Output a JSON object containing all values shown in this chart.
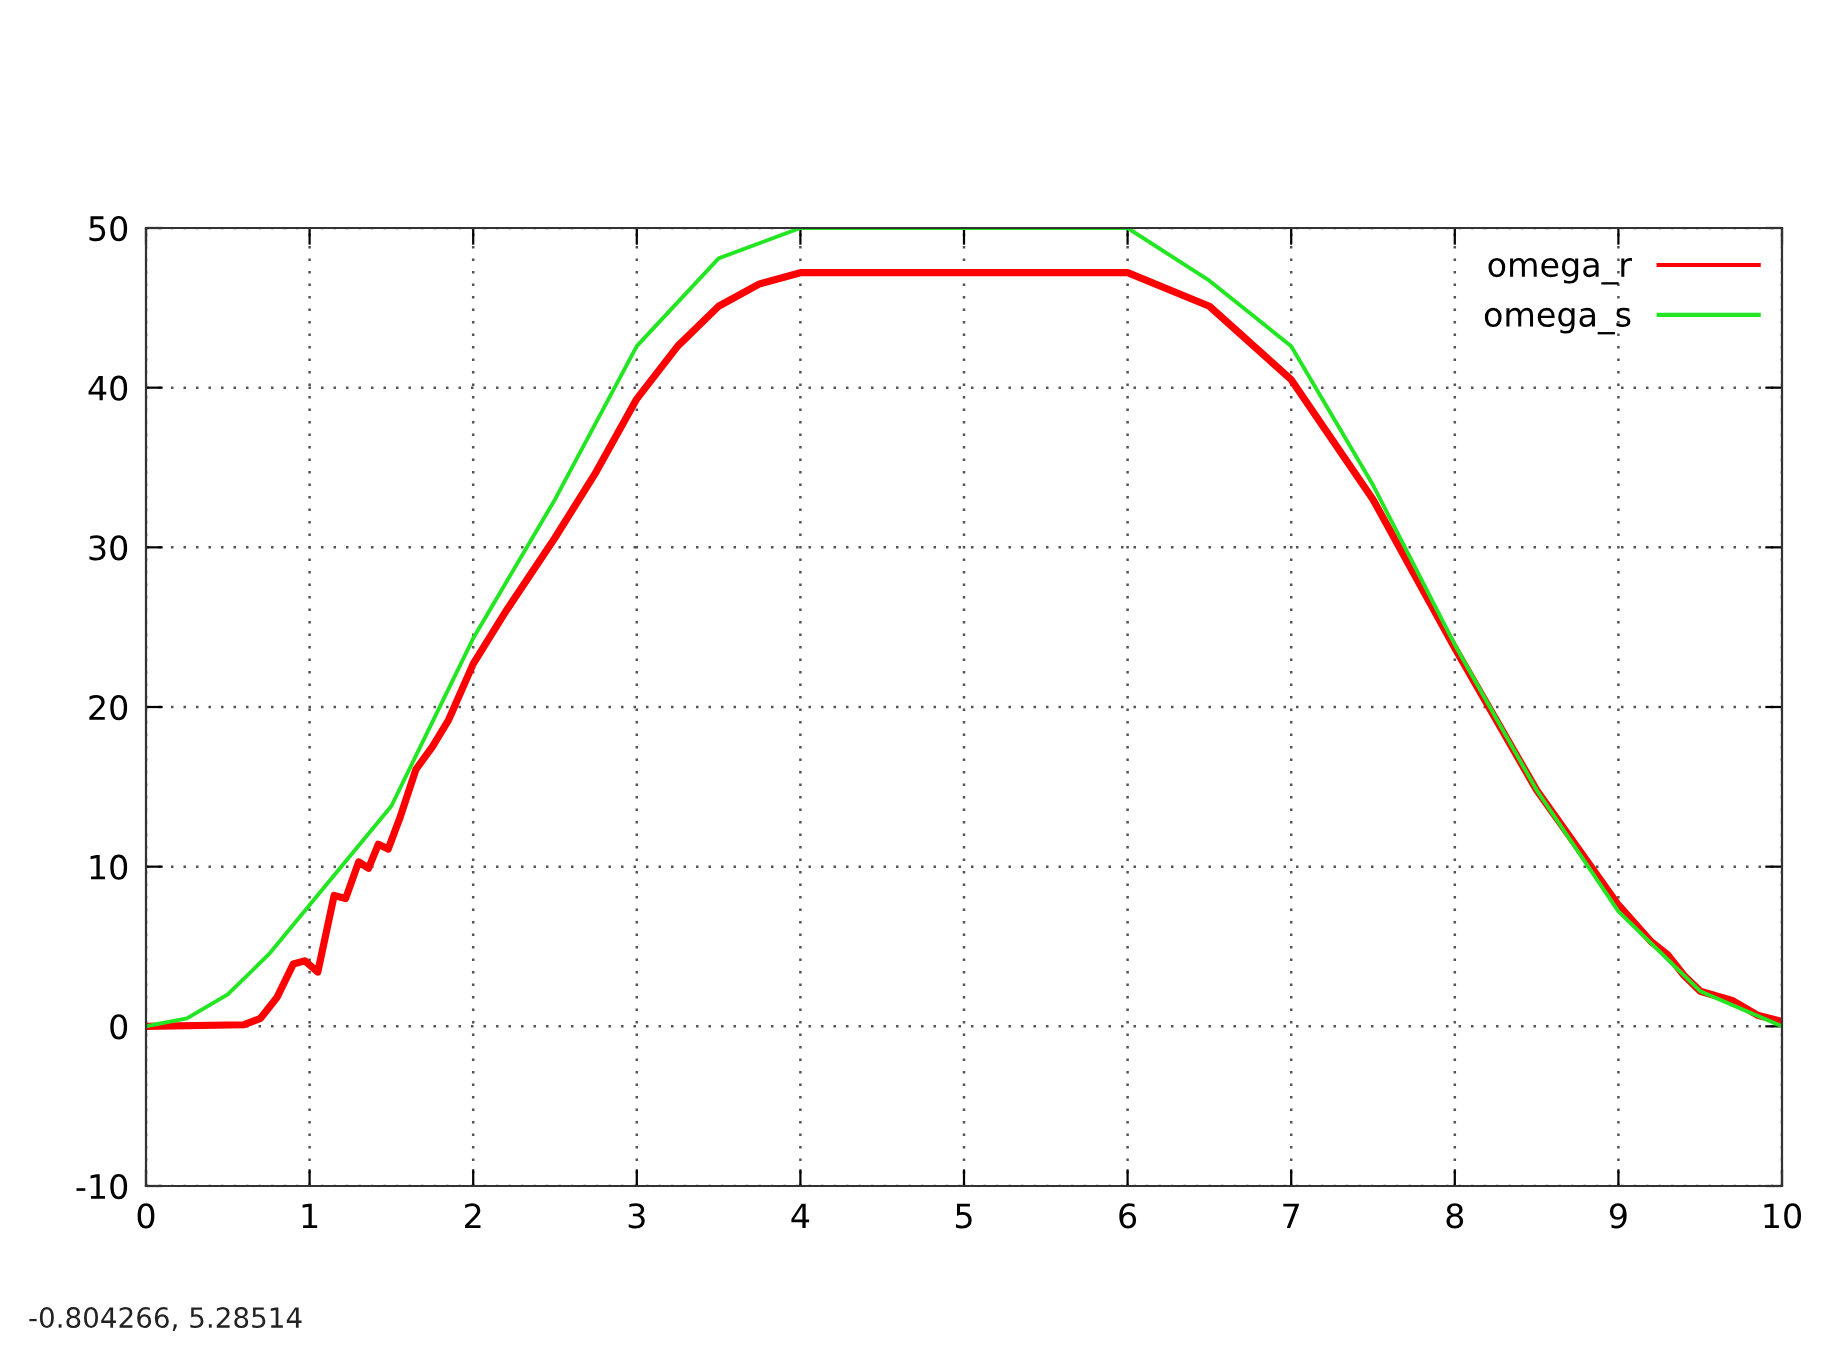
{
  "chart_data": {
    "type": "line",
    "series": [
      {
        "name": "omega_r",
        "color": "#ff0000",
        "x": [
          0,
          0.6,
          0.7,
          0.8,
          0.9,
          0.97,
          1.05,
          1.15,
          1.22,
          1.3,
          1.36,
          1.42,
          1.48,
          1.55,
          1.65,
          1.75,
          1.85,
          2,
          2.2,
          2.5,
          2.75,
          3,
          3.25,
          3.5,
          3.75,
          4,
          6,
          6.5,
          7,
          7.5,
          8,
          8.5,
          9,
          9.2,
          9.3,
          9.4,
          9.5,
          9.7,
          9.85,
          10
        ],
        "values": [
          0,
          0.1,
          0.5,
          1.8,
          3.9,
          4.1,
          3.4,
          8.2,
          8.0,
          10.3,
          9.9,
          11.4,
          11.1,
          13.0,
          16.1,
          17.5,
          19.2,
          22.7,
          26.0,
          30.6,
          34.7,
          39.3,
          42.6,
          45.1,
          46.5,
          47.2,
          47.2,
          45.1,
          40.5,
          33.0,
          23.7,
          14.8,
          7.6,
          5.3,
          4.5,
          3.2,
          2.2,
          1.6,
          0.7,
          0.3
        ]
      },
      {
        "name": "omega_s",
        "color": "#22e622",
        "x": [
          0,
          0.25,
          0.5,
          0.75,
          1,
          1.5,
          2,
          2.5,
          3,
          3.5,
          4,
          6,
          6.5,
          7,
          7.5,
          8,
          8.5,
          9,
          9.5,
          10
        ],
        "values": [
          0,
          0.5,
          2.0,
          4.5,
          7.6,
          13.8,
          24.3,
          33.0,
          42.6,
          48.1,
          50,
          50,
          46.7,
          42.6,
          33.9,
          23.9,
          14.8,
          7.2,
          2.2,
          0
        ]
      }
    ],
    "xlim": [
      0,
      10
    ],
    "xticks": [
      0,
      1,
      2,
      3,
      4,
      5,
      6,
      7,
      8,
      9,
      10
    ],
    "ylim": [
      -10,
      50
    ],
    "yticks": [
      -10,
      0,
      10,
      20,
      30,
      40,
      50
    ],
    "grid": true,
    "legend": "top right",
    "line_style": "solid",
    "marker": "none",
    "annotations": [
      "-0.804266, 5.28514"
    ]
  }
}
